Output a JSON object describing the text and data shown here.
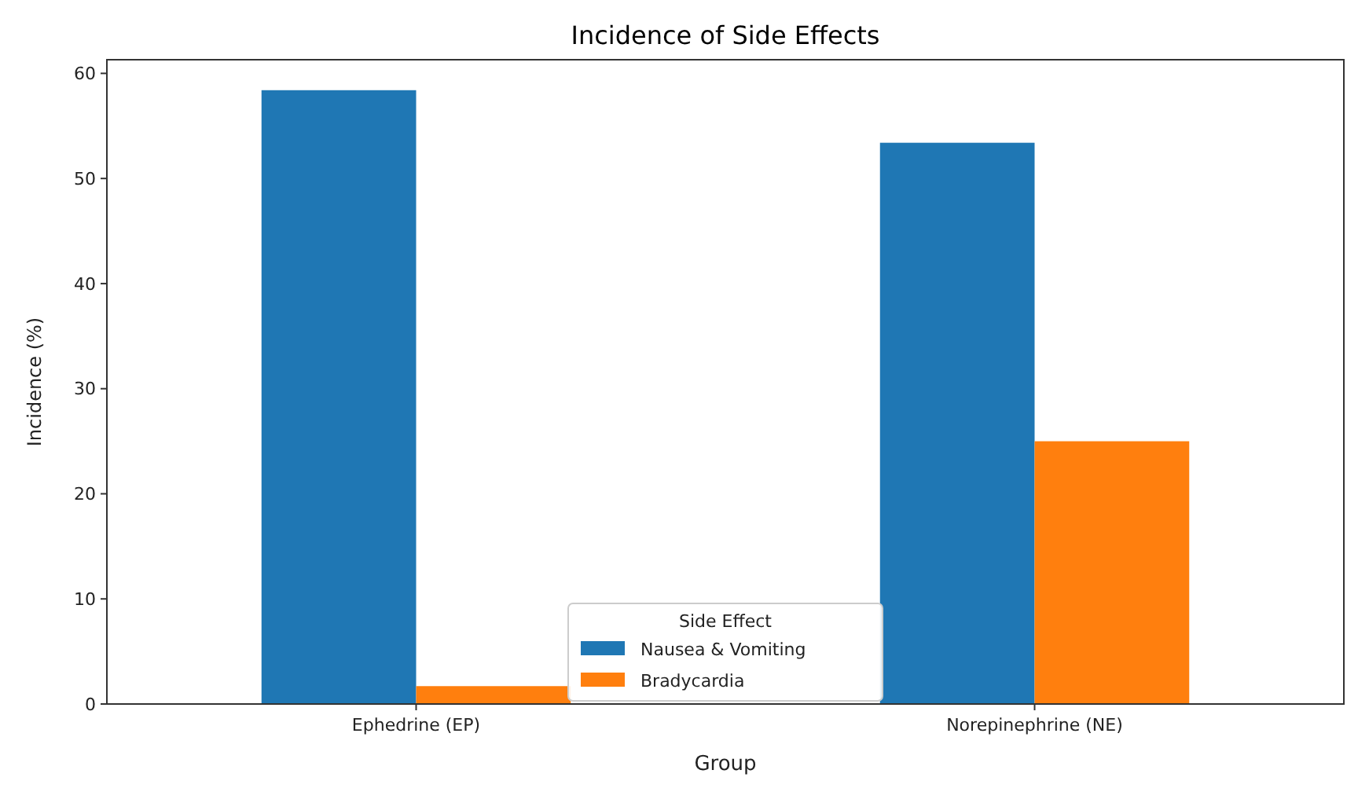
{
  "chart_data": {
    "type": "bar",
    "title": "Incidence of Side Effects",
    "xlabel": "Group",
    "ylabel": "Incidence (%)",
    "legend_title": "Side Effect",
    "categories": [
      "Ephedrine (EP)",
      "Norepinephrine (NE)"
    ],
    "series": [
      {
        "name": "Nausea & Vomiting",
        "color": "#1f77b4",
        "values": [
          58.4,
          53.4
        ]
      },
      {
        "name": "Bradycardia",
        "color": "#ff7f0e",
        "values": [
          1.7,
          25.0
        ]
      }
    ],
    "ylim": [
      0,
      61.3
    ],
    "yticks": [
      0,
      10,
      20,
      30,
      40,
      50,
      60
    ],
    "legend": "bottom",
    "grid": false
  }
}
